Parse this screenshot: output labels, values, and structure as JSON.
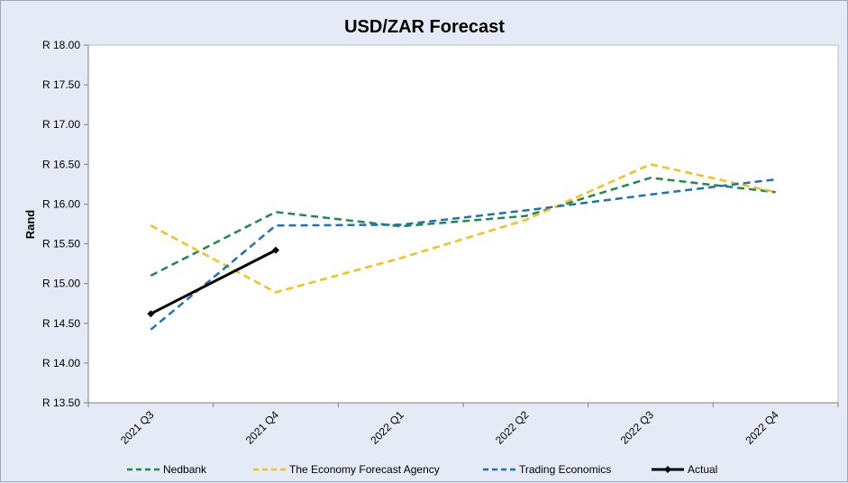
{
  "chart_data": {
    "type": "line",
    "title": "USD/ZAR Forecast",
    "ylabel": "Rand",
    "xlabel": "",
    "categories": [
      "2021 Q3",
      "2021 Q4",
      "2022 Q1",
      "2022 Q2",
      "2022 Q3",
      "2022 Q4"
    ],
    "ylim": [
      13.5,
      18.0
    ],
    "yticks": [
      13.5,
      14.0,
      14.5,
      15.0,
      15.5,
      16.0,
      16.5,
      17.0,
      17.5,
      18.0
    ],
    "ytick_labels": [
      "R 13.50",
      "R 14.00",
      "R 14.50",
      "R 15.00",
      "R 15.50",
      "R 16.00",
      "R 16.50",
      "R 17.00",
      "R 17.50",
      "R 18.00"
    ],
    "grid": false,
    "legend_position": "bottom",
    "series": [
      {
        "name": "Nedbank",
        "color": "#1e8c46",
        "style": "dashed",
        "values": [
          15.1,
          15.9,
          15.72,
          15.85,
          16.33,
          16.15
        ]
      },
      {
        "name": "The Economy Forecast Agency",
        "color": "#f5c018",
        "style": "dashed",
        "values": [
          15.73,
          14.89,
          15.32,
          15.8,
          16.5,
          16.15
        ]
      },
      {
        "name": "Trading Economics",
        "color": "#1f72b8",
        "style": "dashed",
        "values": [
          14.42,
          15.73,
          15.74,
          15.92,
          16.12,
          16.31
        ]
      },
      {
        "name": "Actual",
        "color": "#000000",
        "style": "solid",
        "marker": "diamond",
        "values": [
          14.62,
          15.42,
          null,
          null,
          null,
          null
        ]
      }
    ]
  }
}
